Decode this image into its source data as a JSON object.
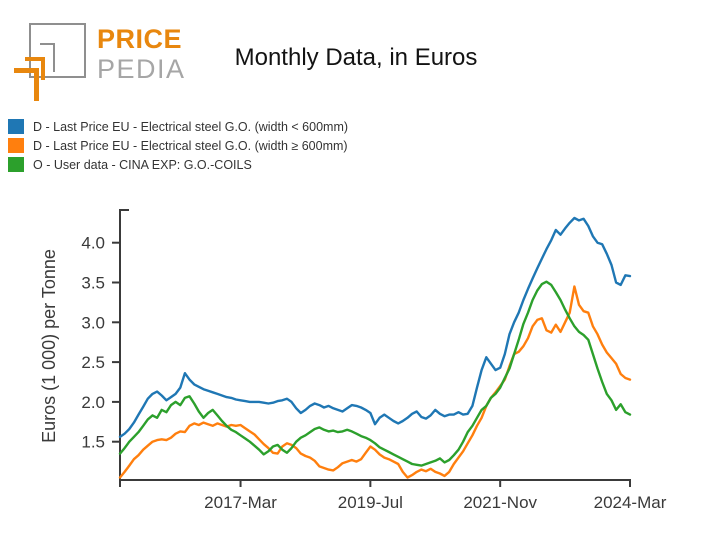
{
  "logo": {
    "price": "PRICE",
    "pedia": "PEDIA",
    "orange": "#e8870e",
    "gray": "#8f8f8f"
  },
  "header": {
    "title": "Monthly Data, in Euros"
  },
  "legend": [
    {
      "label": "D - Last Price EU - Electrical steel G.O. (width < 600mm)",
      "color": "#1f77b4"
    },
    {
      "label": "D - Last Price EU - Electrical steel G.O. (width ≥ 600mm)",
      "color": "#ff7f0e"
    },
    {
      "label": "O - User data - CINA EXP: G.O.-COILS",
      "color": "#2ca02c"
    }
  ],
  "chart_data": {
    "type": "line",
    "title": "Monthly Data, in Euros",
    "xlabel": "",
    "ylabel": "Euros (1 000) per Tonne",
    "x_start": "2015-Jan",
    "x_end": "2024-Mar",
    "frequency": "monthly",
    "ylim": [
      1.0,
      4.4
    ],
    "grid": false,
    "legend_position": "top-left",
    "axis_color": "#3a3a3a",
    "yticks": [
      1.5,
      2.0,
      2.5,
      3.0,
      3.5,
      4.0
    ],
    "xticks": [
      {
        "label": "2017-Mar",
        "month_index": 26
      },
      {
        "label": "2019-Jul",
        "month_index": 54
      },
      {
        "label": "2021-Nov",
        "month_index": 82
      },
      {
        "label": "2024-Mar",
        "month_index": 110
      }
    ],
    "series": [
      {
        "name": "D - Last Price EU - Electrical steel G.O. (width < 600mm)",
        "color": "#1f77b4",
        "values": [
          1.56,
          1.6,
          1.66,
          1.74,
          1.84,
          1.94,
          2.04,
          2.1,
          2.13,
          2.08,
          2.02,
          2.06,
          2.1,
          2.18,
          2.36,
          2.28,
          2.22,
          2.19,
          2.16,
          2.14,
          2.12,
          2.1,
          2.08,
          2.06,
          2.05,
          2.03,
          2.02,
          2.01,
          2.0,
          2.0,
          2.0,
          1.99,
          1.98,
          1.99,
          2.01,
          2.02,
          2.04,
          2.0,
          1.92,
          1.86,
          1.9,
          1.95,
          1.98,
          1.96,
          1.93,
          1.95,
          1.92,
          1.9,
          1.88,
          1.92,
          1.96,
          1.95,
          1.93,
          1.9,
          1.86,
          1.72,
          1.8,
          1.84,
          1.8,
          1.76,
          1.73,
          1.76,
          1.8,
          1.85,
          1.88,
          1.81,
          1.79,
          1.83,
          1.9,
          1.85,
          1.82,
          1.84,
          1.84,
          1.87,
          1.84,
          1.85,
          1.95,
          2.18,
          2.4,
          2.56,
          2.48,
          2.4,
          2.43,
          2.6,
          2.85,
          3.0,
          3.12,
          3.28,
          3.42,
          3.55,
          3.68,
          3.8,
          3.92,
          4.03,
          4.16,
          4.1,
          4.18,
          4.25,
          4.31,
          4.28,
          4.3,
          4.21,
          4.08,
          4.0,
          3.98,
          3.86,
          3.72,
          3.5,
          3.47,
          3.59,
          3.58
        ]
      },
      {
        "name": "D - Last Price EU - Electrical steel G.O. (width ≥ 600mm)",
        "color": "#ff7f0e",
        "values": [
          1.05,
          1.12,
          1.2,
          1.28,
          1.33,
          1.4,
          1.45,
          1.5,
          1.52,
          1.53,
          1.52,
          1.55,
          1.6,
          1.63,
          1.62,
          1.7,
          1.73,
          1.71,
          1.74,
          1.72,
          1.7,
          1.73,
          1.71,
          1.69,
          1.71,
          1.7,
          1.71,
          1.67,
          1.63,
          1.59,
          1.53,
          1.47,
          1.42,
          1.36,
          1.35,
          1.44,
          1.48,
          1.46,
          1.42,
          1.35,
          1.32,
          1.3,
          1.26,
          1.19,
          1.17,
          1.15,
          1.14,
          1.18,
          1.23,
          1.25,
          1.27,
          1.25,
          1.28,
          1.36,
          1.44,
          1.4,
          1.34,
          1.3,
          1.28,
          1.25,
          1.22,
          1.12,
          1.05,
          1.08,
          1.12,
          1.15,
          1.13,
          1.16,
          1.12,
          1.1,
          1.07,
          1.12,
          1.22,
          1.3,
          1.38,
          1.48,
          1.58,
          1.7,
          1.8,
          1.95,
          2.05,
          2.12,
          2.2,
          2.28,
          2.45,
          2.6,
          2.63,
          2.7,
          2.8,
          2.95,
          3.03,
          3.05,
          2.9,
          2.87,
          2.97,
          2.88,
          3.0,
          3.12,
          3.45,
          3.22,
          3.14,
          3.12,
          2.95,
          2.85,
          2.72,
          2.62,
          2.55,
          2.48,
          2.35,
          2.3,
          2.28
        ]
      },
      {
        "name": "O - User data - CINA EXP: G.O.-COILS",
        "color": "#2ca02c",
        "values": [
          1.35,
          1.42,
          1.5,
          1.56,
          1.62,
          1.7,
          1.78,
          1.83,
          1.8,
          1.9,
          1.87,
          1.96,
          2.0,
          1.96,
          2.05,
          2.07,
          1.98,
          1.88,
          1.8,
          1.86,
          1.9,
          1.83,
          1.76,
          1.7,
          1.65,
          1.62,
          1.58,
          1.54,
          1.5,
          1.45,
          1.4,
          1.34,
          1.38,
          1.44,
          1.46,
          1.4,
          1.36,
          1.42,
          1.5,
          1.55,
          1.58,
          1.62,
          1.66,
          1.68,
          1.65,
          1.63,
          1.64,
          1.62,
          1.63,
          1.65,
          1.63,
          1.6,
          1.57,
          1.55,
          1.52,
          1.48,
          1.43,
          1.4,
          1.37,
          1.34,
          1.31,
          1.28,
          1.25,
          1.22,
          1.21,
          1.2,
          1.22,
          1.24,
          1.26,
          1.29,
          1.24,
          1.27,
          1.33,
          1.4,
          1.5,
          1.62,
          1.7,
          1.8,
          1.9,
          1.95,
          2.05,
          2.1,
          2.18,
          2.3,
          2.42,
          2.6,
          2.78,
          2.98,
          3.12,
          3.28,
          3.4,
          3.48,
          3.51,
          3.47,
          3.38,
          3.28,
          3.16,
          3.05,
          2.95,
          2.88,
          2.84,
          2.78,
          2.6,
          2.42,
          2.25,
          2.1,
          2.02,
          1.9,
          1.97,
          1.87,
          1.84
        ]
      }
    ]
  }
}
